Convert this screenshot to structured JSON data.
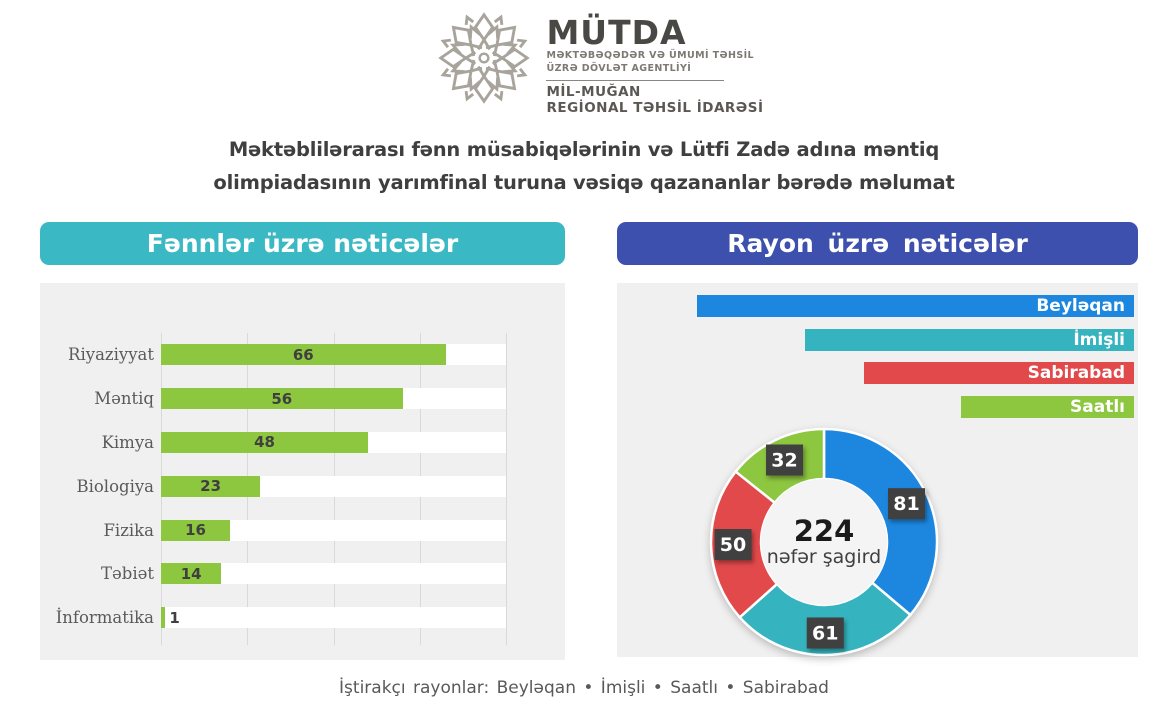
{
  "logo": {
    "acronym": "MÜTDA",
    "subtitle_line1": "MƏKTƏBƏQƏDƏR VƏ ÜMUMİ TƏHSİL",
    "subtitle_line2": "ÜZRƏ DÖVLƏT AGENTLİYİ",
    "org_line1": "MİL-MUĞAN",
    "org_line2": "REGİONAL TƏHSİL İDARƏSİ"
  },
  "title": {
    "line1": "Məktəblilərarası fənn müsabiqələrinin və Lütfi Zadə adına məntiq",
    "line2": "olimpiadasının yarımfinal turuna vəsiqə qazananlar bərədə məlumat"
  },
  "left_panel": {
    "header": "Fənnlər üzrə nəticələr"
  },
  "right_panel": {
    "header": "Rayon üzrə nəticələr"
  },
  "caption": "İştirakçı rayonlar: Beyləqan • İmişli • Saatlı • Sabirabad",
  "colors": {
    "header_teal": "#3ab9c4",
    "header_indigo": "#3d50ad",
    "panel_bg": "#f0f0f0",
    "gridline": "#d9d9d9",
    "bar_green": "#8dc63f",
    "value_label": "#3f3f3f",
    "callout_box": "#404040"
  },
  "chart_data": [
    {
      "type": "bar",
      "orientation": "horizontal",
      "title": "Fənnlər üzrə nəticələr",
      "categories": [
        "Riyaziyyat",
        "Məntiq",
        "Kimya",
        "Biologiya",
        "Fizika",
        "Təbiət",
        "İnformatika"
      ],
      "values": [
        66,
        56,
        48,
        23,
        16,
        14,
        1
      ],
      "xlim": [
        0,
        80
      ],
      "gridline_step": 20,
      "grid": true,
      "bar_color": "#8dc63f",
      "track_color": "#ffffff",
      "value_labels": "inside-center"
    },
    {
      "type": "pie",
      "subtype": "donut",
      "title": "Rayon üzrə nəticələr",
      "categories": [
        "Beyləqan",
        "İmişli",
        "Saatlı",
        "Sabirabad"
      ],
      "slices_clockwise_from_top": [
        {
          "label": "Beyləqan",
          "value": 81,
          "color": "#1d87e0"
        },
        {
          "label": "İmişli",
          "value": 61,
          "color": "#35b4bf"
        },
        {
          "label": "Sabirabad",
          "value": 50,
          "color": "#e2494b"
        },
        {
          "label": "Saatlı",
          "value": 32,
          "color": "#8dc63f"
        }
      ],
      "legend_order": [
        {
          "label": "Beyləqan",
          "value": 81,
          "color": "#1d87e0"
        },
        {
          "label": "İmişli",
          "value": 61,
          "color": "#35b4bf"
        },
        {
          "label": "Sabirabad",
          "value": 50,
          "color": "#e2494b"
        },
        {
          "label": "Saatlı",
          "value": 32,
          "color": "#8dc63f"
        }
      ],
      "total": 224,
      "center_value": "224",
      "center_label": "nəfər şagird",
      "legend_position": "top-right-bars",
      "value_labels": "dark-square-callouts"
    }
  ]
}
